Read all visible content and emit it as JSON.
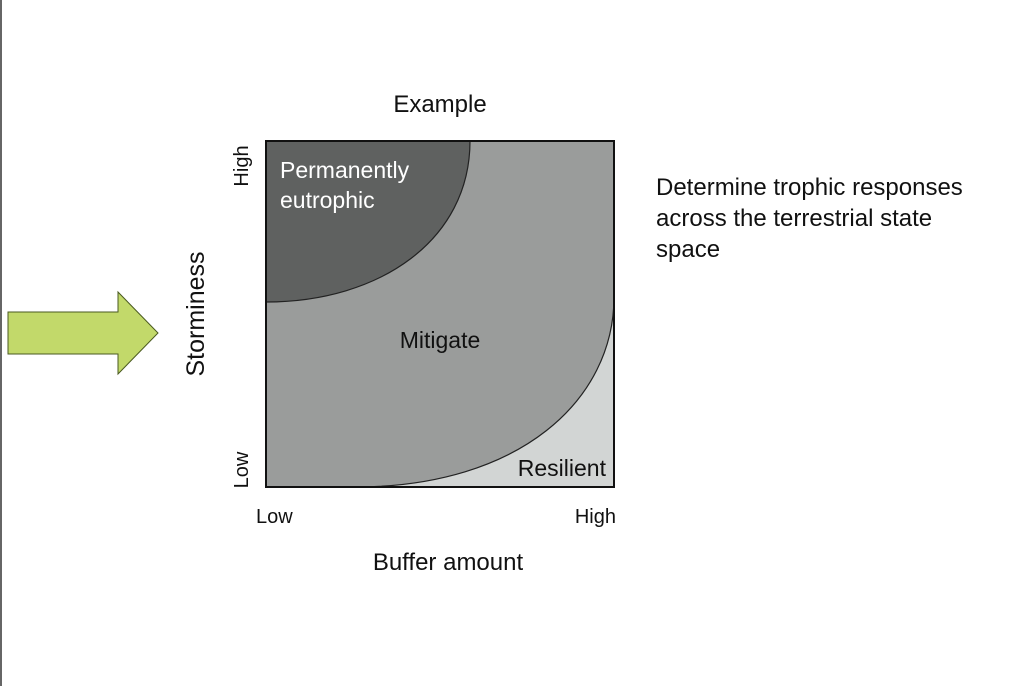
{
  "diagram": {
    "title": "Example",
    "y_axis": {
      "label": "Storminess",
      "low": "Low",
      "high": "High"
    },
    "x_axis": {
      "label": "Buffer amount",
      "low": "Low",
      "high": "High"
    },
    "regions": [
      {
        "label": "Permanently eutrophic"
      },
      {
        "label": "Mitigate"
      },
      {
        "label": "Resilient"
      }
    ],
    "note": "Determine trophic responses across the terrestrial state space"
  }
}
